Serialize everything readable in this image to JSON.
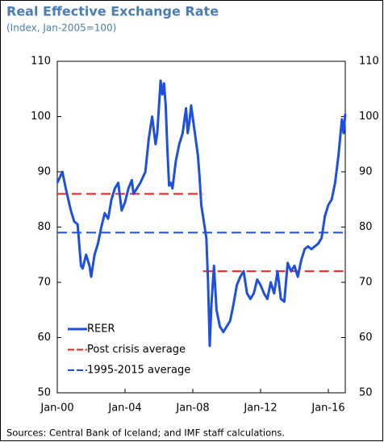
{
  "chart_data": {
    "type": "line",
    "title": "Real Effective Exchange Rate",
    "subtitle": "(Index, Jan-2005=100)",
    "source": "Sources: Central Bank of Iceland; and IMF staff calculations.",
    "xlim": [
      2000,
      2017
    ],
    "xticks": [
      {
        "value": 2000,
        "label": "Jan-00"
      },
      {
        "value": 2004,
        "label": "Jan-04"
      },
      {
        "value": 2008,
        "label": "Jan-08"
      },
      {
        "value": 2012,
        "label": "Jan-12"
      },
      {
        "value": 2016,
        "label": "Jan-16"
      }
    ],
    "ylim": [
      50,
      110
    ],
    "yticks": [
      50,
      60,
      70,
      80,
      90,
      100,
      110
    ],
    "y2lim": [
      50,
      110
    ],
    "y2ticks": [
      50,
      60,
      70,
      80,
      90,
      100,
      110
    ],
    "legend": "lower left",
    "series": [
      {
        "name": "REER",
        "color": "#1f4fe0",
        "dashed": false,
        "width": 3,
        "x": [
          2000.0,
          2000.3,
          2000.5,
          2000.8,
          2001.0,
          2001.2,
          2001.4,
          2001.5,
          2001.7,
          2001.9,
          2002.0,
          2002.2,
          2002.4,
          2002.6,
          2002.8,
          2003.0,
          2003.2,
          2003.4,
          2003.6,
          2003.8,
          2004.0,
          2004.2,
          2004.4,
          2004.5,
          2004.7,
          2004.9,
          2005.2,
          2005.4,
          2005.6,
          2005.8,
          2005.9,
          2006.1,
          2006.2,
          2006.3,
          2006.4,
          2006.5,
          2006.6,
          2006.7,
          2006.8,
          2007.0,
          2007.2,
          2007.4,
          2007.6,
          2007.7,
          2007.8,
          2007.9,
          2008.1,
          2008.3,
          2008.4,
          2008.5,
          2008.6,
          2008.7,
          2008.8,
          2008.9,
          2009.0,
          2009.1,
          2009.25,
          2009.4,
          2009.6,
          2009.8,
          2010.0,
          2010.2,
          2010.4,
          2010.6,
          2010.8,
          2011.0,
          2011.2,
          2011.4,
          2011.6,
          2011.8,
          2012.0,
          2012.2,
          2012.4,
          2012.6,
          2012.8,
          2013.0,
          2013.2,
          2013.4,
          2013.6,
          2013.8,
          2014.0,
          2014.2,
          2014.4,
          2014.6,
          2014.8,
          2015.0,
          2015.2,
          2015.4,
          2015.6,
          2015.8,
          2016.0,
          2016.2,
          2016.4,
          2016.6,
          2016.8,
          2016.9,
          2017.0
        ],
        "values": [
          88,
          90,
          87,
          83,
          81,
          80.5,
          73,
          72.5,
          75,
          73,
          71,
          75,
          77,
          80,
          82.5,
          81.5,
          85,
          87,
          88,
          83,
          84.5,
          87,
          88.5,
          86,
          87,
          88,
          90,
          96,
          100,
          95,
          97,
          106.5,
          104,
          106,
          102,
          94,
          87.5,
          88,
          87,
          92,
          95,
          97,
          101.5,
          97,
          99,
          102,
          97.5,
          93,
          89,
          84,
          82,
          80,
          78,
          70,
          58.5,
          66,
          73,
          65,
          62,
          61,
          62,
          63,
          66,
          69.5,
          71,
          72,
          68,
          67,
          68,
          70.5,
          69.5,
          68,
          67,
          70,
          68,
          72,
          67,
          66.5,
          73.5,
          72,
          73,
          71,
          74,
          76,
          76.5,
          76,
          76.5,
          77,
          78,
          82,
          84,
          85,
          88,
          93,
          99.5,
          97,
          100.5
        ]
      },
      {
        "name": "Post crisis average",
        "color": "#e8201e",
        "dashed": true,
        "width": 2,
        "x": [
          2000,
          2008.6,
          2008.6,
          2008.6,
          2017
        ],
        "values": [
          86,
          86,
          null,
          72,
          72
        ]
      },
      {
        "name": "1995-2015 average",
        "color": "#1f4fe0",
        "dashed": true,
        "width": 2,
        "x": [
          2000,
          2017
        ],
        "values": [
          79,
          79
        ]
      }
    ]
  }
}
